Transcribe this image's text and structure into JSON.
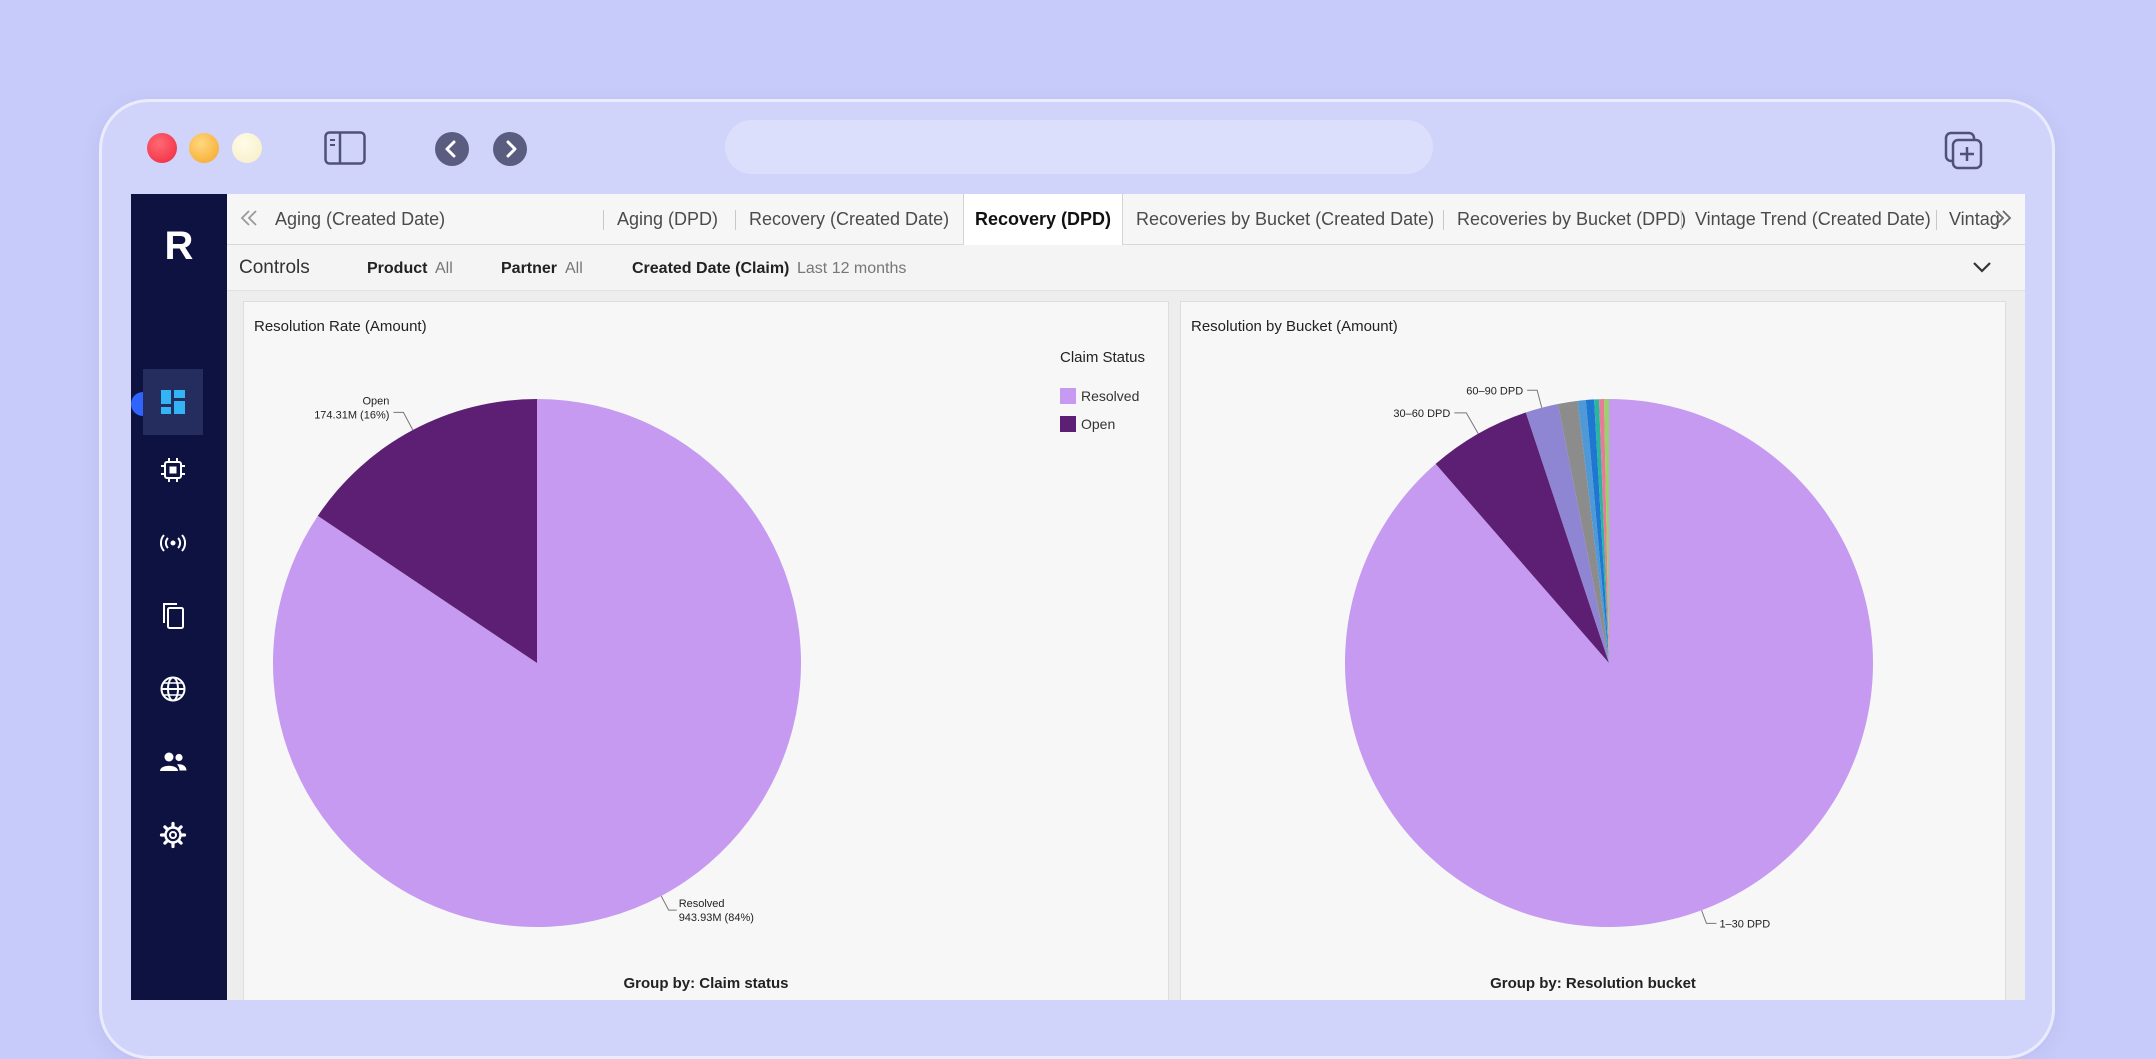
{
  "app": {
    "logo": "R"
  },
  "tabs": [
    {
      "label": "Aging (Created Date)"
    },
    {
      "label": "Aging (DPD)"
    },
    {
      "label": "Recovery (Created Date)"
    },
    {
      "label": "Recovery (DPD)",
      "active": true
    },
    {
      "label": "Recoveries by Bucket (Created Date)"
    },
    {
      "label": "Recoveries by Bucket (DPD)"
    },
    {
      "label": "Vintage Trend (Created Date)"
    },
    {
      "label": "Vintage Trend ("
    }
  ],
  "controls": {
    "title": "Controls",
    "product": {
      "name": "Product",
      "value": "All"
    },
    "partner": {
      "name": "Partner",
      "value": "All"
    },
    "created_date": {
      "name": "Created Date (Claim)",
      "value": "Last 12 months"
    }
  },
  "colors": {
    "light_purple": "#c59af0",
    "dark_purple": "#5c1f73",
    "rail": "#0d1240",
    "accent": "#2f64ff"
  },
  "chart_data": [
    {
      "type": "pie",
      "title": "Resolution Rate (Amount)",
      "legend_title": "Claim Status",
      "legend_position": "top-right",
      "group_by": "Group by: Claim status",
      "slices": [
        {
          "name": "Resolved",
          "value": 943.93,
          "label_line1": "Resolved",
          "label_line2": "943.93M (84%)",
          "color": "#c59af0"
        },
        {
          "name": "Open",
          "value": 174.31,
          "label_line1": "Open",
          "label_line2": "174.31M (16%)",
          "color": "#5c1f73"
        }
      ]
    },
    {
      "type": "pie",
      "title": "Resolution by Bucket (Amount)",
      "group_by": "Group by: Resolution bucket",
      "slices": [
        {
          "name": "1-30 DPD",
          "value": 88.6,
          "label": "1–30 DPD",
          "color": "#c59af0"
        },
        {
          "name": "30-60 DPD",
          "value": 6.3,
          "label": "30–60 DPD",
          "color": "#5c1f73"
        },
        {
          "name": "60-90 DPD",
          "value": 2.0,
          "label": "60–90 DPD",
          "color": "#8e86d2"
        },
        {
          "name": "",
          "value": 1.2,
          "color": "#8c8c8c"
        },
        {
          "name": "",
          "value": 0.5,
          "color": "#4f9ad6"
        },
        {
          "name": "",
          "value": 0.5,
          "color": "#1f77d4"
        },
        {
          "name": "",
          "value": 0.3,
          "color": "#2bb5a0"
        },
        {
          "name": "",
          "value": 0.3,
          "color": "#e87b9a"
        },
        {
          "name": "",
          "value": 0.3,
          "color": "#9bd06a"
        }
      ]
    }
  ]
}
